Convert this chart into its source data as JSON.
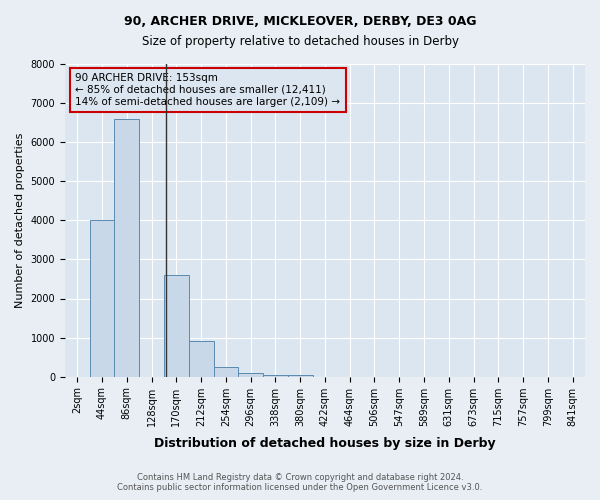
{
  "title1": "90, ARCHER DRIVE, MICKLEOVER, DERBY, DE3 0AG",
  "title2": "Size of property relative to detached houses in Derby",
  "xlabel": "Distribution of detached houses by size in Derby",
  "ylabel": "Number of detached properties",
  "annotation_line1": "90 ARCHER DRIVE: 153sqm",
  "annotation_line2": "← 85% of detached houses are smaller (12,411)",
  "annotation_line3": "14% of semi-detached houses are larger (2,109) →",
  "footer1": "Contains HM Land Registry data © Crown copyright and database right 2024.",
  "footer2": "Contains public sector information licensed under the Open Government Licence v3.0.",
  "property_size": 153,
  "bin_labels": [
    "2sqm",
    "44sqm",
    "86sqm",
    "128sqm",
    "170sqm",
    "212sqm",
    "254sqm",
    "296sqm",
    "338sqm",
    "380sqm",
    "422sqm",
    "464sqm",
    "506sqm",
    "547sqm",
    "589sqm",
    "631sqm",
    "673sqm",
    "715sqm",
    "757sqm",
    "799sqm",
    "841sqm"
  ],
  "counts": [
    0,
    4000,
    6600,
    0,
    2600,
    900,
    250,
    100,
    50,
    50,
    0,
    0,
    0,
    0,
    0,
    0,
    0,
    0,
    0,
    0,
    0
  ],
  "bar_color": "#c8d8e8",
  "bar_edge_color": "#5b8ab0",
  "bg_color": "#e8eef4",
  "plot_bg_color": "#dce6f0",
  "grid_color": "#ffffff",
  "annotation_box_color": "#cc0000",
  "vline_color": "#333333",
  "ylim": [
    0,
    8000
  ],
  "yticks": [
    0,
    1000,
    2000,
    3000,
    4000,
    5000,
    6000,
    7000,
    8000
  ],
  "title1_fontsize": 9,
  "title2_fontsize": 8.5,
  "ylabel_fontsize": 8,
  "xlabel_fontsize": 9,
  "tick_fontsize": 7,
  "annot_fontsize": 7.5,
  "footer_fontsize": 6
}
